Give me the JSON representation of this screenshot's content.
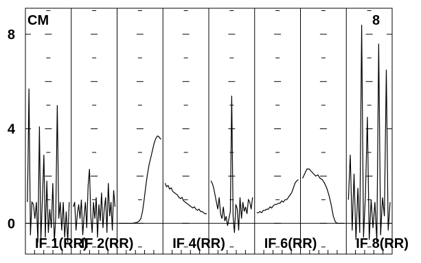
{
  "chart_data": {
    "type": "line",
    "title": "",
    "corner_labels": {
      "left": "CM",
      "right": "8"
    },
    "y_ticks": [
      {
        "value": 0,
        "label": "0"
      },
      {
        "value": 4,
        "label": "4"
      },
      {
        "value": 8,
        "label": "8"
      }
    ],
    "ylim": [
      -1.3,
      9.1
    ],
    "grid": true,
    "panels": [
      {
        "label": "IF 1(RR)",
        "values": [
          0.9,
          5.7,
          -0.5,
          0.9,
          0.8,
          0.2,
          0.9,
          -0.8,
          4.1,
          -0.7,
          1.0,
          2.9,
          -0.6,
          1.8,
          -0.4,
          0.6,
          -0.2,
          1.7,
          -0.8,
          0.3,
          5.0,
          0.2,
          0.9,
          -0.3,
          0.9,
          -0.6,
          0.5,
          -0.8,
          0.9
        ]
      },
      {
        "label": "IF 2(RR)",
        "values": [
          0.7,
          0.9,
          -0.3,
          0.4,
          0.8,
          0.2,
          1.0,
          -0.5,
          0.3,
          0.9,
          -0.2,
          1.6,
          2.3,
          0.3,
          -0.4,
          0.9,
          0.2,
          1.1,
          -0.6,
          0.8,
          0.1,
          1.3,
          -0.2,
          0.6,
          1.1,
          -0.4,
          1.7,
          0.3,
          0.9,
          -0.3,
          1.4,
          0.7
        ]
      },
      {
        "label": "",
        "values": [
          0.0,
          0.0,
          0.0,
          0.0,
          0.0,
          0.0,
          0.0,
          0.0,
          0.0,
          0.02,
          0.03,
          0.05,
          0.1,
          0.2,
          0.5,
          1.0,
          1.6,
          2.1,
          2.5,
          2.8,
          3.1,
          3.4,
          3.6,
          3.7,
          3.65,
          3.55
        ]
      },
      {
        "label": "IF 4(RR)",
        "values": [
          1.7,
          1.55,
          1.6,
          1.45,
          1.5,
          1.35,
          1.3,
          1.25,
          1.2,
          1.1,
          1.05,
          1.1,
          0.95,
          0.9,
          0.85,
          0.8,
          0.75,
          0.7,
          0.65,
          0.7,
          0.6,
          0.55,
          0.6,
          0.5,
          0.5,
          0.45,
          0.4,
          0.42
        ]
      },
      {
        "label": "",
        "values": [
          1.8,
          1.7,
          1.5,
          1.2,
          0.9,
          0.6,
          1.1,
          0.4,
          0.2,
          0.7,
          0.1,
          0.3,
          -0.1,
          0.2,
          0.5,
          5.4,
          0.3,
          -0.4,
          0.8,
          0.6,
          -0.3,
          1.1,
          0.2,
          0.9,
          0.5,
          0.7,
          0.4,
          1.0,
          0.9,
          0.6,
          1.1
        ]
      },
      {
        "label": "IF 6(RR)",
        "values": [
          0.45,
          0.45,
          0.5,
          0.45,
          0.55,
          0.55,
          0.6,
          0.6,
          0.7,
          0.65,
          0.75,
          0.8,
          0.8,
          0.85,
          0.85,
          0.95,
          0.9,
          1.0,
          1.0,
          1.1,
          1.2,
          1.3,
          1.5,
          1.7,
          1.8,
          1.85
        ]
      },
      {
        "label": "",
        "values": [
          1.9,
          2.1,
          2.3,
          2.3,
          2.2,
          2.1,
          2.0,
          2.05,
          1.9,
          1.85,
          1.7,
          1.5,
          1.2,
          0.8,
          0.3,
          0.05,
          0.0,
          0.0,
          0.0,
          0.0
        ]
      },
      {
        "label": "IF 8(RR)",
        "values": [
          1.0,
          2.9,
          -0.3,
          2.1,
          -0.7,
          1.5,
          -0.4,
          8.4,
          -0.6,
          1.2,
          4.5,
          -0.7,
          1.0,
          -0.2,
          0.9,
          -0.8,
          7.6,
          -0.5,
          1.1,
          0.3,
          6.5,
          -0.3,
          0.9
        ]
      }
    ]
  }
}
